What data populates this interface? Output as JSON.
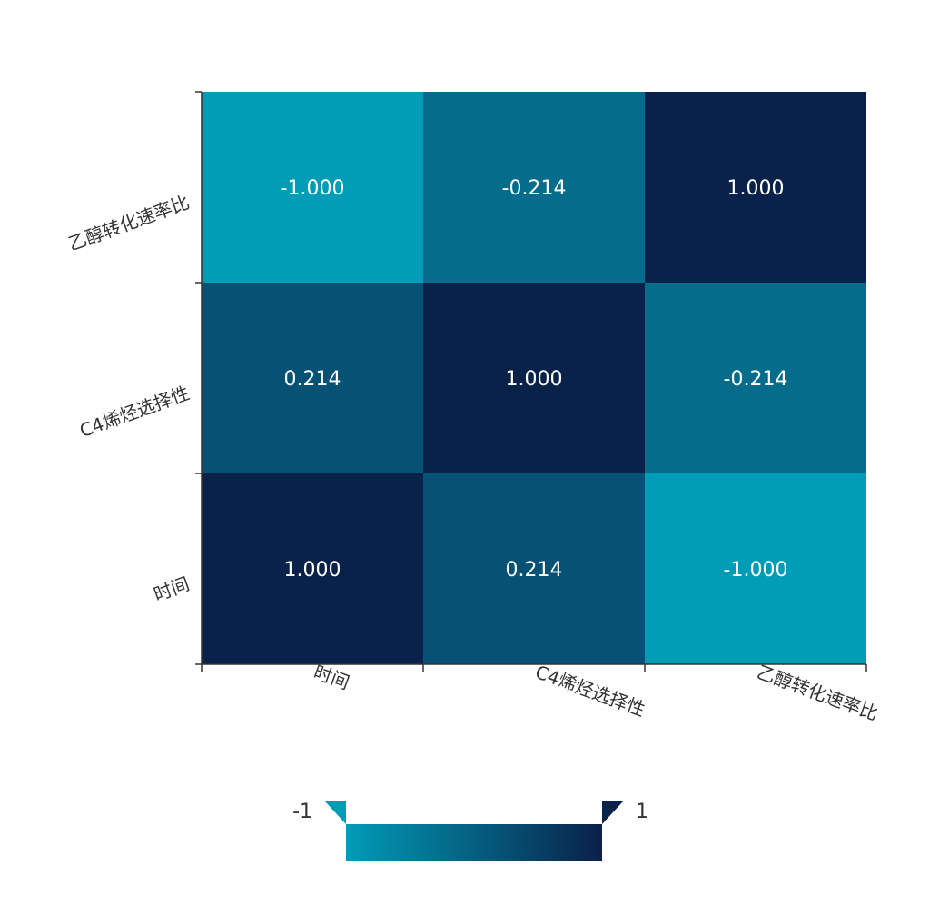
{
  "chart_data": {
    "type": "heatmap",
    "x_categories": [
      "时间",
      "C4烯烃选择性",
      "乙醇转化速率比"
    ],
    "y_categories": [
      "时间",
      "C4烯烃选择性",
      "乙醇转化速率比"
    ],
    "matrix": [
      [
        1.0,
        0.214,
        -1.0
      ],
      [
        0.214,
        1.0,
        -0.214
      ],
      [
        -1.0,
        -0.214,
        1.0
      ]
    ],
    "value_labels": [
      [
        "1.000",
        "0.214",
        "-1.000"
      ],
      [
        "0.214",
        "1.000",
        "-0.214"
      ],
      [
        "-1.000",
        "-0.214",
        "1.000"
      ]
    ],
    "color_range": [
      -1,
      1
    ],
    "colors": {
      "min": "#019cb6",
      "max": "#0a214a",
      "label_color": "#ffffff",
      "tick_color": "#333333"
    },
    "legend": {
      "type": "continuous",
      "min_label": "-1",
      "max_label": "1",
      "placement": "bottom-center"
    }
  }
}
